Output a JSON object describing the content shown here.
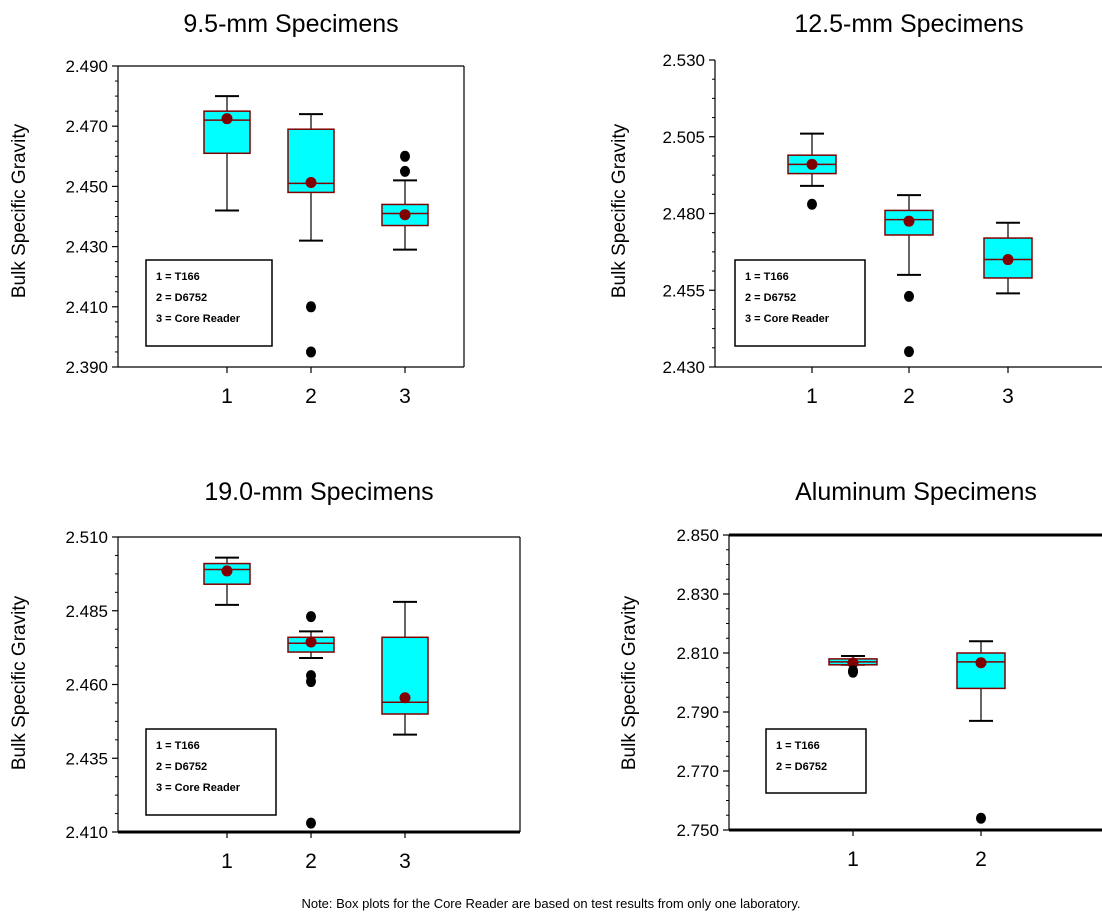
{
  "chart_data": [
    {
      "type": "box",
      "title": "9.5-mm Specimens",
      "ylabel": "Bulk Specific Gravity",
      "ylim": [
        2.39,
        2.49
      ],
      "yticks": [
        "2.390",
        "2.410",
        "2.430",
        "2.450",
        "2.470",
        "2.490"
      ],
      "categories": [
        "1",
        "2",
        "3"
      ],
      "boxes": [
        {
          "x": "1",
          "whisker_low": 2.442,
          "q1": 2.461,
          "median": 2.472,
          "q3": 2.475,
          "whisker_high": 2.48,
          "mean": 2.4725,
          "outliers": []
        },
        {
          "x": "2",
          "whisker_low": 2.432,
          "q1": 2.448,
          "median": 2.451,
          "q3": 2.469,
          "whisker_high": 2.474,
          "mean": 2.4513,
          "outliers": [
            2.41,
            2.395
          ]
        },
        {
          "x": "3",
          "whisker_low": 2.429,
          "q1": 2.437,
          "median": 2.441,
          "q3": 2.444,
          "whisker_high": 2.452,
          "mean": 2.4406,
          "outliers": [
            2.46,
            2.455
          ]
        }
      ],
      "legend": [
        "1 = T166",
        "2 = D6752",
        "3 = Core Reader"
      ]
    },
    {
      "type": "box",
      "title": "12.5-mm Specimens",
      "ylabel": "Bulk Specific Gravity",
      "ylim": [
        2.43,
        2.53
      ],
      "yticks": [
        "2.430",
        "2.455",
        "2.480",
        "2.505",
        "2.530"
      ],
      "categories": [
        "1",
        "2",
        "3"
      ],
      "boxes": [
        {
          "x": "1",
          "whisker_low": 2.489,
          "q1": 2.493,
          "median": 2.496,
          "q3": 2.499,
          "whisker_high": 2.506,
          "mean": 2.496,
          "outliers": [
            2.483
          ]
        },
        {
          "x": "2",
          "whisker_low": 2.46,
          "q1": 2.473,
          "median": 2.478,
          "q3": 2.481,
          "whisker_high": 2.486,
          "mean": 2.4775,
          "outliers": [
            2.453,
            2.435
          ]
        },
        {
          "x": "3",
          "whisker_low": 2.454,
          "q1": 2.459,
          "median": 2.465,
          "q3": 2.472,
          "whisker_high": 2.477,
          "mean": 2.465,
          "outliers": []
        }
      ],
      "legend": [
        "1 = T166",
        "2 = D6752",
        "3 = Core Reader"
      ]
    },
    {
      "type": "box",
      "title": "19.0-mm Specimens",
      "ylabel": "Bulk Specific Gravity",
      "ylim": [
        2.41,
        2.51
      ],
      "yticks": [
        "2.410",
        "2.435",
        "2.460",
        "2.485",
        "2.510"
      ],
      "categories": [
        "1",
        "2",
        "3"
      ],
      "boxes": [
        {
          "x": "1",
          "whisker_low": 2.487,
          "q1": 2.494,
          "median": 2.499,
          "q3": 2.501,
          "whisker_high": 2.503,
          "mean": 2.4985,
          "outliers": []
        },
        {
          "x": "2",
          "whisker_low": 2.469,
          "q1": 2.471,
          "median": 2.474,
          "q3": 2.476,
          "whisker_high": 2.478,
          "mean": 2.4744,
          "outliers": [
            2.483,
            2.463,
            2.461,
            2.413
          ]
        },
        {
          "x": "3",
          "whisker_low": 2.443,
          "q1": 2.45,
          "median": 2.454,
          "q3": 2.476,
          "whisker_high": 2.488,
          "mean": 2.4555,
          "outliers": []
        }
      ],
      "legend": [
        "1 = T166",
        "2 = D6752",
        "3 = Core Reader"
      ]
    },
    {
      "type": "box",
      "title": "Aluminum Specimens",
      "ylabel": "Bulk Specific Gravity",
      "ylim": [
        2.75,
        2.85
      ],
      "yticks": [
        "2.750",
        "2.770",
        "2.790",
        "2.810",
        "2.830",
        "2.850"
      ],
      "categories": [
        "1",
        "2"
      ],
      "boxes": [
        {
          "x": "1",
          "whisker_low": 2.806,
          "q1": 2.806,
          "median": 2.807,
          "q3": 2.808,
          "whisker_high": 2.809,
          "mean": 2.8066,
          "outliers": [
            2.804,
            2.8035
          ]
        },
        {
          "x": "2",
          "whisker_low": 2.787,
          "q1": 2.798,
          "median": 2.807,
          "q3": 2.81,
          "whisker_high": 2.814,
          "mean": 2.8067,
          "outliers": [
            2.754
          ]
        }
      ],
      "legend": [
        "1 = T166",
        "2 = D6752"
      ]
    }
  ],
  "note": "Note: Box plots for the Core Reader are based on test results from only one laboratory.",
  "colors": {
    "box_fill": "#00ffff",
    "box_edge": "#800000",
    "mean_marker": "#800000",
    "outlier": "#000000"
  }
}
